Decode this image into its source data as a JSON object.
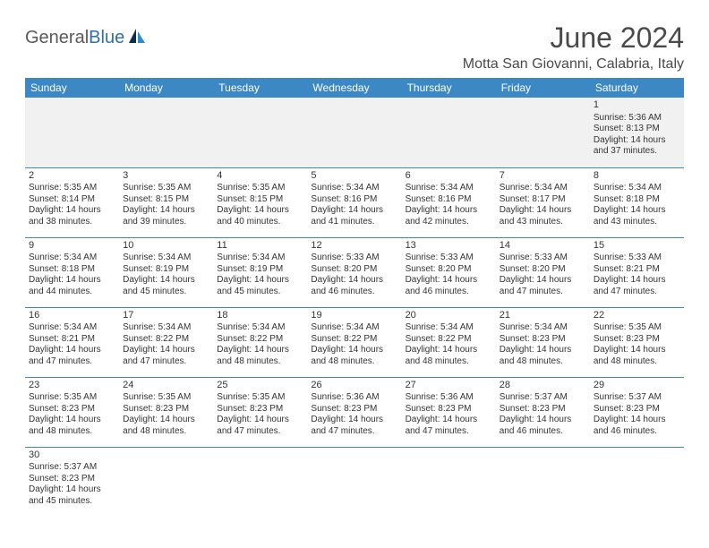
{
  "logo": {
    "text1": "General",
    "text2": "Blue",
    "sail_color_dark": "#0b2f4a",
    "sail_color_light": "#2f8bc9"
  },
  "title": "June 2024",
  "location": "Motta San Giovanni, Calabria, Italy",
  "header_bg": "#3b88c4",
  "week_alt_bg": "#f1f1f1",
  "border_color": "#3b88c4",
  "dow": [
    "Sunday",
    "Monday",
    "Tuesday",
    "Wednesday",
    "Thursday",
    "Friday",
    "Saturday"
  ],
  "weeks": [
    [
      null,
      null,
      null,
      null,
      null,
      null,
      {
        "n": "1",
        "sr": "5:36 AM",
        "ss": "8:13 PM",
        "dl": "14 hours and 37 minutes."
      }
    ],
    [
      {
        "n": "2",
        "sr": "5:35 AM",
        "ss": "8:14 PM",
        "dl": "14 hours and 38 minutes."
      },
      {
        "n": "3",
        "sr": "5:35 AM",
        "ss": "8:15 PM",
        "dl": "14 hours and 39 minutes."
      },
      {
        "n": "4",
        "sr": "5:35 AM",
        "ss": "8:15 PM",
        "dl": "14 hours and 40 minutes."
      },
      {
        "n": "5",
        "sr": "5:34 AM",
        "ss": "8:16 PM",
        "dl": "14 hours and 41 minutes."
      },
      {
        "n": "6",
        "sr": "5:34 AM",
        "ss": "8:16 PM",
        "dl": "14 hours and 42 minutes."
      },
      {
        "n": "7",
        "sr": "5:34 AM",
        "ss": "8:17 PM",
        "dl": "14 hours and 43 minutes."
      },
      {
        "n": "8",
        "sr": "5:34 AM",
        "ss": "8:18 PM",
        "dl": "14 hours and 43 minutes."
      }
    ],
    [
      {
        "n": "9",
        "sr": "5:34 AM",
        "ss": "8:18 PM",
        "dl": "14 hours and 44 minutes."
      },
      {
        "n": "10",
        "sr": "5:34 AM",
        "ss": "8:19 PM",
        "dl": "14 hours and 45 minutes."
      },
      {
        "n": "11",
        "sr": "5:34 AM",
        "ss": "8:19 PM",
        "dl": "14 hours and 45 minutes."
      },
      {
        "n": "12",
        "sr": "5:33 AM",
        "ss": "8:20 PM",
        "dl": "14 hours and 46 minutes."
      },
      {
        "n": "13",
        "sr": "5:33 AM",
        "ss": "8:20 PM",
        "dl": "14 hours and 46 minutes."
      },
      {
        "n": "14",
        "sr": "5:33 AM",
        "ss": "8:20 PM",
        "dl": "14 hours and 47 minutes."
      },
      {
        "n": "15",
        "sr": "5:33 AM",
        "ss": "8:21 PM",
        "dl": "14 hours and 47 minutes."
      }
    ],
    [
      {
        "n": "16",
        "sr": "5:34 AM",
        "ss": "8:21 PM",
        "dl": "14 hours and 47 minutes."
      },
      {
        "n": "17",
        "sr": "5:34 AM",
        "ss": "8:22 PM",
        "dl": "14 hours and 47 minutes."
      },
      {
        "n": "18",
        "sr": "5:34 AM",
        "ss": "8:22 PM",
        "dl": "14 hours and 48 minutes."
      },
      {
        "n": "19",
        "sr": "5:34 AM",
        "ss": "8:22 PM",
        "dl": "14 hours and 48 minutes."
      },
      {
        "n": "20",
        "sr": "5:34 AM",
        "ss": "8:22 PM",
        "dl": "14 hours and 48 minutes."
      },
      {
        "n": "21",
        "sr": "5:34 AM",
        "ss": "8:23 PM",
        "dl": "14 hours and 48 minutes."
      },
      {
        "n": "22",
        "sr": "5:35 AM",
        "ss": "8:23 PM",
        "dl": "14 hours and 48 minutes."
      }
    ],
    [
      {
        "n": "23",
        "sr": "5:35 AM",
        "ss": "8:23 PM",
        "dl": "14 hours and 48 minutes."
      },
      {
        "n": "24",
        "sr": "5:35 AM",
        "ss": "8:23 PM",
        "dl": "14 hours and 48 minutes."
      },
      {
        "n": "25",
        "sr": "5:35 AM",
        "ss": "8:23 PM",
        "dl": "14 hours and 47 minutes."
      },
      {
        "n": "26",
        "sr": "5:36 AM",
        "ss": "8:23 PM",
        "dl": "14 hours and 47 minutes."
      },
      {
        "n": "27",
        "sr": "5:36 AM",
        "ss": "8:23 PM",
        "dl": "14 hours and 47 minutes."
      },
      {
        "n": "28",
        "sr": "5:37 AM",
        "ss": "8:23 PM",
        "dl": "14 hours and 46 minutes."
      },
      {
        "n": "29",
        "sr": "5:37 AM",
        "ss": "8:23 PM",
        "dl": "14 hours and 46 minutes."
      }
    ],
    [
      {
        "n": "30",
        "sr": "5:37 AM",
        "ss": "8:23 PM",
        "dl": "14 hours and 45 minutes."
      },
      null,
      null,
      null,
      null,
      null,
      null
    ]
  ],
  "labels": {
    "sunrise": "Sunrise:",
    "sunset": "Sunset:",
    "daylight": "Daylight:"
  }
}
